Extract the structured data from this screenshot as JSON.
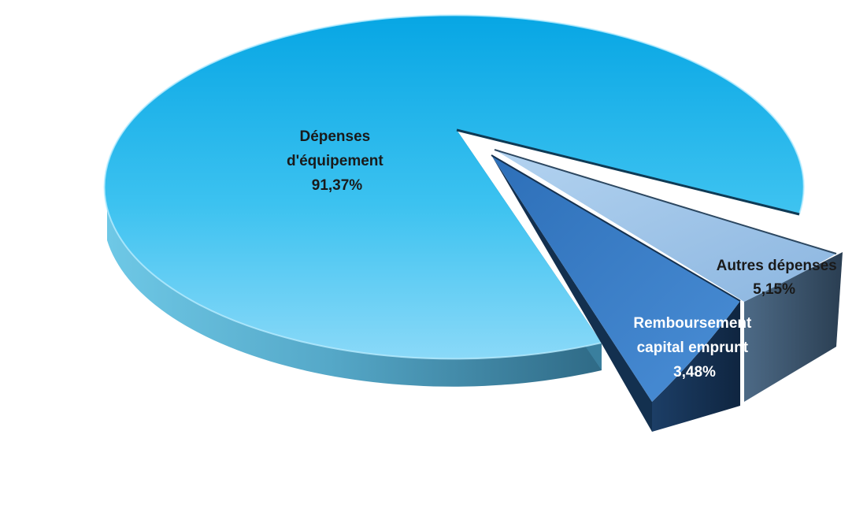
{
  "chart_data": {
    "type": "pie",
    "style": "3d-exploded",
    "slices": [
      {
        "key": "equipement",
        "label_lines": [
          "Dépenses",
          "d'équipement"
        ],
        "value_text": "91,37%",
        "value": 91.37,
        "color": "#29b8ec",
        "label_color": "#1a1a1a"
      },
      {
        "key": "autres",
        "label_lines": [
          "Autres dépenses"
        ],
        "value_text": "5,15%",
        "value": 5.15,
        "color": "#9fc3e6",
        "label_color": "#1a1a1a"
      },
      {
        "key": "remboursement",
        "label_lines": [
          "Remboursement",
          "capital emprunt"
        ],
        "value_text": "3,48%",
        "value": 3.48,
        "color": "#3b7cc4",
        "label_color": "#ffffff"
      }
    ]
  }
}
